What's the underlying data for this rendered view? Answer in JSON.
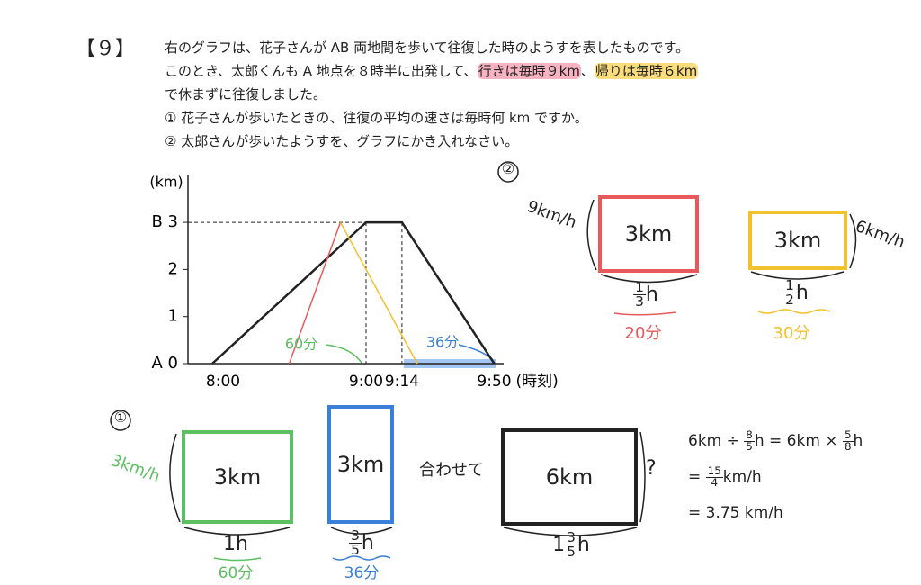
{
  "header": {
    "number": "【９】"
  },
  "problem": {
    "lines": [
      [
        {
          "text": "右のグラフは、花子さんが AB 両地間を歩いて往復した時のようすを表したものです。"
        }
      ],
      [
        {
          "text": "このとき、太郎くんも A 地点を８時半に出発して、"
        },
        {
          "text": "行きは毎時９km",
          "highlight": "#f7b3c2"
        },
        {
          "text": "、"
        },
        {
          "text": "帰りは毎時６km",
          "highlight": "#fbdc7a"
        }
      ],
      [
        {
          "text": "で休まずに往復しました。"
        }
      ],
      [
        {
          "text": "①  花子さんが歩いたときの、往復の平均の速さは毎時何 km ですか。"
        }
      ],
      [
        {
          "text": "②  太郎さんが歩いたようすを、グラフにかき入れなさい。"
        }
      ]
    ]
  },
  "graph": {
    "y_label": "(km)",
    "x_label": "(時刻)",
    "yticks": [
      {
        "value": 0,
        "label": "A 0"
      },
      1,
      2,
      {
        "value": 3,
        "label": "B 3"
      }
    ],
    "xticks": [
      {
        "value": 480,
        "label": "8:00"
      },
      {
        "value": 540,
        "label": "9:00"
      },
      {
        "value": 554,
        "label": "9:14"
      },
      {
        "value": 590,
        "label": "9:50"
      }
    ],
    "series": [
      {
        "color": "#222222",
        "x": [
          480,
          540,
          554,
          590
        ],
        "y": [
          0,
          3,
          3,
          0
        ]
      },
      {
        "color": "#e8595b",
        "x": [
          510,
          530
        ],
        "y": [
          0,
          3
        ]
      },
      {
        "color": "#f2c12e",
        "x": [
          530,
          560
        ],
        "y": [
          3,
          0
        ]
      }
    ],
    "notes": [
      {
        "text": "60分",
        "color": "#5cbf60"
      },
      {
        "text": "36分",
        "color": "#3b7fd9"
      }
    ]
  },
  "part2": {
    "label": "②",
    "go": {
      "distance": "3km",
      "speed": "9km/h",
      "time": [
        {
          "num": "1",
          "den": "3"
        },
        {
          "text": "h"
        }
      ],
      "minutes": "20分",
      "color": "#e8595b"
    },
    "back": {
      "distance": "3km",
      "speed": "6km/h",
      "time": [
        {
          "num": "1",
          "den": "2"
        },
        {
          "text": "h"
        }
      ],
      "minutes": "30分",
      "color": "#f2c12e"
    }
  },
  "part1": {
    "label": "①",
    "go": {
      "distance": "3km",
      "speed": "3km/h",
      "time": [
        {
          "text": "1h"
        }
      ],
      "minutes": "60分",
      "color": "#5cbf60"
    },
    "back": {
      "distance": "3km",
      "time": [
        {
          "num": "3",
          "den": "5"
        },
        {
          "text": "h"
        }
      ],
      "minutes": "36分",
      "color": "#3b7fd9"
    },
    "combined": "合わせて",
    "total": {
      "distance": "6km",
      "question": "?",
      "time": [
        {
          "text": "1"
        },
        {
          "num": "3",
          "den": "5"
        },
        {
          "text": "h"
        }
      ]
    },
    "calculation": [
      [
        {
          "text": "6km ÷ "
        },
        {
          "num": "8",
          "den": "5"
        },
        {
          "text": "h = 6km × "
        },
        {
          "num": "5",
          "den": "8"
        },
        {
          "text": "h"
        }
      ],
      [
        {
          "text": "= "
        },
        {
          "num": "15",
          "den": "4"
        },
        {
          "text": "km/h"
        }
      ],
      [
        {
          "text": "= 3.75 km/h"
        }
      ]
    ]
  }
}
